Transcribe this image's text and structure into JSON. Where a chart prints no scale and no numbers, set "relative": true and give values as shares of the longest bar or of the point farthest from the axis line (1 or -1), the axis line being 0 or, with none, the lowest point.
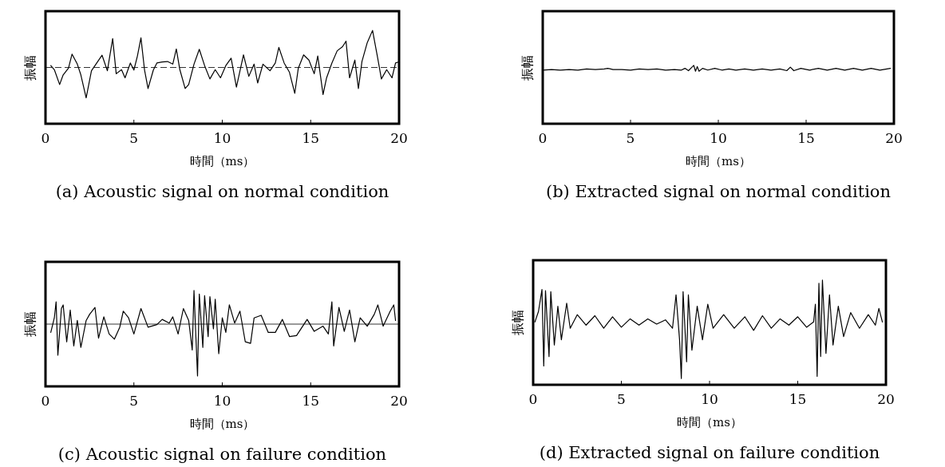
{
  "chart_data": [
    {
      "type": "line",
      "title": "(a) Acoustic signal on normal condition",
      "xlabel": "時間（ms）",
      "ylabel": "振幅",
      "relative": true,
      "xlim": [
        0,
        20
      ],
      "xticks": [
        0,
        5,
        10,
        15,
        20
      ],
      "grid": false,
      "ref_lines": [
        {
          "axis": "y",
          "value": 0,
          "line_style": "dashed",
          "color": "#000000"
        }
      ],
      "series": [
        {
          "color": "#000000",
          "x": [
            0.3,
            0.5,
            0.8,
            1.0,
            1.3,
            1.5,
            1.8,
            2.0,
            2.3,
            2.6,
            2.9,
            3.2,
            3.5,
            3.8,
            4.0,
            4.3,
            4.5,
            4.8,
            5.0,
            5.2,
            5.4,
            5.6,
            5.8,
            6.1,
            6.3,
            6.6,
            6.9,
            7.2,
            7.4,
            7.6,
            7.9,
            8.1,
            8.4,
            8.7,
            9.0,
            9.3,
            9.6,
            9.9,
            10.2,
            10.5,
            10.8,
            11.2,
            11.5,
            11.8,
            12.0,
            12.3,
            12.7,
            13.0,
            13.2,
            13.5,
            13.8,
            14.1,
            14.3,
            14.6,
            14.9,
            15.2,
            15.4,
            15.7,
            15.9,
            16.2,
            16.5,
            16.8,
            17.0,
            17.2,
            17.5,
            17.7,
            17.9,
            18.2,
            18.5,
            18.8,
            19.0,
            19.3,
            19.6,
            19.8,
            20.0
          ],
          "values": [
            0.05,
            -0.06,
            -0.46,
            -0.2,
            -0.02,
            0.36,
            0.09,
            -0.2,
            -0.82,
            -0.09,
            0.12,
            0.33,
            -0.09,
            0.78,
            -0.17,
            -0.06,
            -0.28,
            0.12,
            -0.07,
            0.31,
            0.8,
            -0.06,
            -0.57,
            -0.07,
            0.12,
            0.15,
            0.16,
            0.09,
            0.5,
            -0.06,
            -0.57,
            -0.46,
            0.09,
            0.49,
            0.05,
            -0.31,
            -0.06,
            -0.28,
            0.05,
            0.25,
            -0.53,
            0.34,
            -0.24,
            0.09,
            -0.42,
            0.09,
            -0.09,
            0.12,
            0.54,
            0.12,
            -0.13,
            -0.7,
            -0.02,
            0.34,
            0.2,
            -0.17,
            0.31,
            -0.73,
            -0.28,
            0.12,
            0.45,
            0.56,
            0.71,
            -0.28,
            0.2,
            -0.57,
            0.16,
            0.67,
            1,
            0.23,
            -0.31,
            -0.06,
            -0.28,
            0.12,
            0.15
          ]
        }
      ]
    },
    {
      "type": "line",
      "title": "(b) Extracted signal on normal condition",
      "xlabel": "時間（ms）",
      "ylabel": "振幅",
      "relative": true,
      "xlim": [
        0,
        20
      ],
      "xticks": [
        0,
        5,
        10,
        15,
        20
      ],
      "grid": false,
      "series": [
        {
          "color": "#000000",
          "x": [
            0,
            0.5,
            1,
            1.5,
            2,
            2.5,
            3,
            3.5,
            3.7,
            4,
            4.5,
            5,
            5.5,
            6,
            6.5,
            7,
            7.5,
            7.9,
            8.1,
            8.3,
            8.5,
            8.6,
            8.7,
            8.8,
            8.9,
            9.1,
            9.4,
            9.8,
            10.2,
            10.6,
            11,
            11.5,
            12,
            12.5,
            13,
            13.5,
            13.9,
            14.1,
            14.3,
            14.7,
            15.2,
            15.7,
            16.2,
            16.7,
            17.2,
            17.7,
            18.2,
            18.7,
            19.2,
            19.8
          ],
          "values": [
            0.92,
            0.93,
            0.92,
            0.93,
            0.92,
            0.94,
            0.93,
            0.94,
            0.95,
            0.93,
            0.93,
            0.92,
            0.94,
            0.93,
            0.94,
            0.92,
            0.93,
            0.92,
            0.95,
            0.91,
            0.97,
            1,
            0.9,
            0.98,
            0.9,
            0.95,
            0.92,
            0.95,
            0.92,
            0.94,
            0.92,
            0.94,
            0.92,
            0.94,
            0.92,
            0.94,
            0.91,
            0.97,
            0.91,
            0.95,
            0.92,
            0.95,
            0.92,
            0.95,
            0.92,
            0.95,
            0.92,
            0.95,
            0.92,
            0.95
          ]
        }
      ]
    },
    {
      "type": "line",
      "title": "(c) Acoustic signal on failure condition",
      "xlabel": "時間（ms）",
      "ylabel": "振幅",
      "relative": true,
      "xlim": [
        0,
        20
      ],
      "xticks": [
        0,
        5,
        10,
        15,
        20
      ],
      "grid": false,
      "ref_lines": [
        {
          "axis": "y",
          "value": 0,
          "line_style": "solid",
          "color": "#000000"
        }
      ],
      "series": [
        {
          "color": "#000000",
          "x": [
            0.3,
            0.5,
            0.6,
            0.7,
            0.9,
            1.0,
            1.2,
            1.4,
            1.6,
            1.8,
            2.0,
            2.3,
            2.5,
            2.8,
            3.0,
            3.3,
            3.6,
            3.9,
            4.2,
            4.4,
            4.7,
            5.0,
            5.4,
            5.8,
            6.3,
            6.6,
            7.0,
            7.2,
            7.5,
            7.8,
            8.1,
            8.3,
            8.4,
            8.5,
            8.6,
            8.7,
            8.9,
            9.0,
            9.2,
            9.3,
            9.5,
            9.6,
            9.8,
            10.0,
            10.2,
            10.4,
            10.7,
            11.0,
            11.3,
            11.6,
            11.8,
            12.2,
            12.6,
            13.0,
            13.4,
            13.8,
            14.2,
            14.8,
            15.2,
            15.7,
            16.0,
            16.2,
            16.3,
            16.6,
            16.9,
            17.2,
            17.5,
            17.8,
            18.2,
            18.6,
            18.8,
            19.1,
            19.5,
            19.7,
            19.8
          ],
          "values": [
            -0.16,
            0.12,
            0.43,
            -0.6,
            0.3,
            0.37,
            -0.34,
            0.27,
            -0.42,
            0.07,
            -0.45,
            0.07,
            0.19,
            0.32,
            -0.27,
            0.14,
            -0.19,
            -0.29,
            -0.06,
            0.25,
            0.12,
            -0.19,
            0.3,
            -0.06,
            -0.01,
            0.09,
            0.02,
            0.14,
            -0.19,
            0.3,
            0.07,
            -0.5,
            0.65,
            -0.19,
            -1,
            0.58,
            -0.45,
            0.55,
            -0.24,
            0.53,
            -0.09,
            0.48,
            -0.57,
            0.12,
            -0.16,
            0.37,
            0.02,
            0.25,
            -0.34,
            -0.37,
            0.12,
            0.17,
            -0.16,
            -0.16,
            0.09,
            -0.24,
            -0.22,
            0.09,
            -0.14,
            -0.04,
            -0.19,
            0.43,
            -0.42,
            0.32,
            -0.14,
            0.27,
            -0.34,
            0.12,
            -0.04,
            0.19,
            0.37,
            -0.04,
            0.25,
            0.37,
            0.07
          ]
        }
      ]
    },
    {
      "type": "line",
      "title": "(d) Extracted signal on failure condition",
      "xlabel": "時間（ms）",
      "ylabel": "振幅",
      "relative": true,
      "xlim": [
        0,
        20
      ],
      "xticks": [
        0,
        5,
        10,
        15,
        20
      ],
      "grid": false,
      "series": [
        {
          "color": "#000000",
          "x": [
            0.1,
            0.3,
            0.5,
            0.6,
            0.7,
            0.9,
            1.0,
            1.2,
            1.4,
            1.6,
            1.9,
            2.1,
            2.5,
            3.0,
            3.5,
            4.0,
            4.5,
            5.0,
            5.5,
            6.0,
            6.5,
            7.0,
            7.5,
            7.9,
            8.1,
            8.3,
            8.4,
            8.5,
            8.7,
            8.8,
            9.0,
            9.3,
            9.6,
            9.9,
            10.2,
            10.8,
            11.4,
            12.0,
            12.5,
            13.0,
            13.5,
            14.0,
            14.5,
            15.0,
            15.5,
            15.9,
            16.0,
            16.1,
            16.2,
            16.3,
            16.4,
            16.6,
            16.8,
            17.0,
            17.3,
            17.6,
            18.0,
            18.5,
            19.0,
            19.4,
            19.6,
            19.8
          ],
          "values": [
            0.6,
            0.7,
            0.91,
            0.18,
            0.9,
            0.27,
            0.89,
            0.38,
            0.75,
            0.43,
            0.78,
            0.54,
            0.67,
            0.57,
            0.66,
            0.54,
            0.65,
            0.55,
            0.63,
            0.57,
            0.63,
            0.58,
            0.62,
            0.54,
            0.86,
            0.43,
            0.06,
            0.89,
            0.22,
            0.86,
            0.33,
            0.75,
            0.43,
            0.77,
            0.54,
            0.67,
            0.54,
            0.65,
            0.52,
            0.66,
            0.54,
            0.63,
            0.57,
            0.65,
            0.55,
            0.6,
            0.77,
            0.08,
            0.97,
            0.27,
            1,
            0.3,
            0.86,
            0.38,
            0.75,
            0.46,
            0.69,
            0.54,
            0.67,
            0.57,
            0.73,
            0.6
          ]
        }
      ]
    }
  ]
}
